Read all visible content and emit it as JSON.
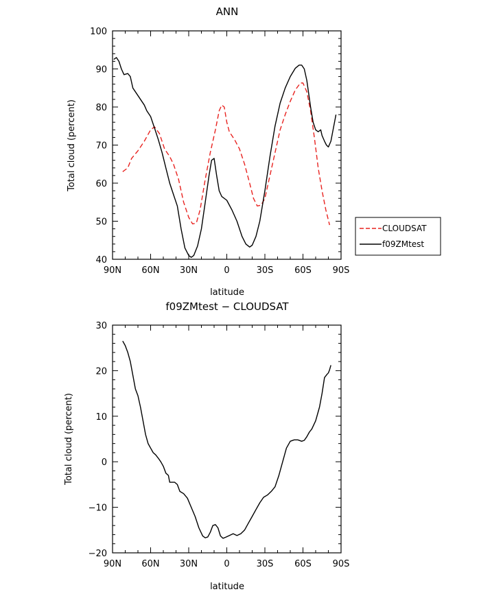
{
  "chart_data": [
    {
      "type": "line",
      "title": "ANN",
      "xlabel": "latitude",
      "ylabel": "Total cloud (percent)",
      "xlim": [
        90,
        -90
      ],
      "ylim": [
        40,
        100
      ],
      "xticks": [
        90,
        60,
        30,
        0,
        -30,
        -60,
        -90
      ],
      "xtick_labels": [
        "90N",
        "60N",
        "30N",
        "0",
        "30S",
        "60S",
        "90S"
      ],
      "yticks": [
        40,
        50,
        60,
        70,
        80,
        90,
        100
      ],
      "ytick_labels": [
        "40",
        "50",
        "60",
        "70",
        "80",
        "90",
        "100"
      ],
      "legend_position": "right",
      "series": [
        {
          "name": "CLOUDSAT",
          "color": "#e8221f",
          "dash": "dashed",
          "points": [
            [
              82,
              63
            ],
            [
              78,
              64
            ],
            [
              75,
              66.5
            ],
            [
              70,
              68.5
            ],
            [
              65,
              71
            ],
            [
              60,
              74
            ],
            [
              57,
              74.8
            ],
            [
              53,
              73
            ],
            [
              49,
              69
            ],
            [
              45,
              67
            ],
            [
              42,
              65
            ],
            [
              38,
              61
            ],
            [
              34,
              55
            ],
            [
              30,
              51
            ],
            [
              27,
              49.3
            ],
            [
              24,
              49.5
            ],
            [
              21,
              53
            ],
            [
              17,
              61
            ],
            [
              13,
              68
            ],
            [
              9,
              74
            ],
            [
              6,
              79
            ],
            [
              4,
              80.5
            ],
            [
              2,
              80
            ],
            [
              0,
              76
            ],
            [
              -2,
              73.5
            ],
            [
              -6,
              71.5
            ],
            [
              -10,
              69
            ],
            [
              -14,
              65
            ],
            [
              -18,
              60
            ],
            [
              -21,
              56
            ],
            [
              -24,
              54
            ],
            [
              -27,
              54.2
            ],
            [
              -30,
              56
            ],
            [
              -34,
              62
            ],
            [
              -38,
              68
            ],
            [
              -42,
              74
            ],
            [
              -46,
              78
            ],
            [
              -50,
              81.5
            ],
            [
              -54,
              84.5
            ],
            [
              -58,
              86.3
            ],
            [
              -60,
              86.3
            ],
            [
              -63,
              84
            ],
            [
              -66,
              79
            ],
            [
              -69,
              72
            ],
            [
              -72,
              64
            ],
            [
              -75,
              58
            ],
            [
              -78,
              53
            ],
            [
              -81,
              49
            ]
          ]
        },
        {
          "name": "f09ZMtest",
          "color": "#000000",
          "dash": "solid",
          "points": [
            [
              89,
              92.5
            ],
            [
              87,
              93
            ],
            [
              85,
              92
            ],
            [
              83,
              90
            ],
            [
              81,
              88.5
            ],
            [
              78,
              88.8
            ],
            [
              76,
              88
            ],
            [
              74,
              85
            ],
            [
              72,
              84
            ],
            [
              70,
              83
            ],
            [
              67,
              81.5
            ],
            [
              65,
              80.5
            ],
            [
              63,
              79
            ],
            [
              60,
              77.5
            ],
            [
              57,
              74.5
            ],
            [
              54,
              71.5
            ],
            [
              51,
              68
            ],
            [
              48,
              64
            ],
            [
              45,
              60
            ],
            [
              42,
              57
            ],
            [
              39,
              54
            ],
            [
              36,
              48
            ],
            [
              33,
              43
            ],
            [
              30,
              41
            ],
            [
              28,
              40.5
            ],
            [
              26,
              41
            ],
            [
              23,
              43.5
            ],
            [
              20,
              48
            ],
            [
              17,
              55
            ],
            [
              14,
              62
            ],
            [
              12,
              66
            ],
            [
              10,
              66.5
            ],
            [
              8,
              62
            ],
            [
              6,
              58
            ],
            [
              4,
              56.5
            ],
            [
              0,
              55.5
            ],
            [
              -4,
              53
            ],
            [
              -8,
              50
            ],
            [
              -12,
              46
            ],
            [
              -15,
              44
            ],
            [
              -18,
              43.2
            ],
            [
              -20,
              43.7
            ],
            [
              -23,
              46
            ],
            [
              -26,
              50
            ],
            [
              -30,
              58
            ],
            [
              -34,
              67
            ],
            [
              -38,
              75
            ],
            [
              -42,
              81
            ],
            [
              -46,
              85
            ],
            [
              -50,
              88
            ],
            [
              -54,
              90.2
            ],
            [
              -57,
              91
            ],
            [
              -59,
              91
            ],
            [
              -61,
              90
            ],
            [
              -63,
              87
            ],
            [
              -66,
              80
            ],
            [
              -68,
              76
            ],
            [
              -70,
              74
            ],
            [
              -72,
              73.5
            ],
            [
              -74,
              74
            ],
            [
              -75,
              72.5
            ],
            [
              -77,
              71
            ],
            [
              -78.5,
              70
            ],
            [
              -80,
              69.5
            ],
            [
              -82,
              71
            ],
            [
              -84,
              74.5
            ],
            [
              -86,
              78
            ]
          ]
        }
      ]
    },
    {
      "type": "line",
      "title": "f09ZMtest − CLOUDSAT",
      "xlabel": "latitude",
      "ylabel": "Total cloud (percent)",
      "xlim": [
        90,
        -90
      ],
      "ylim": [
        -20,
        30
      ],
      "xticks": [
        90,
        60,
        30,
        0,
        -30,
        -60,
        -90
      ],
      "xtick_labels": [
        "90N",
        "60N",
        "30N",
        "0",
        "30S",
        "60S",
        "90S"
      ],
      "yticks": [
        -20,
        -10,
        0,
        10,
        20,
        30
      ],
      "ytick_labels": [
        "−20",
        "−10",
        "0",
        "10",
        "20",
        "30"
      ],
      "series": [
        {
          "color": "#000000",
          "dash": "solid",
          "points": [
            [
              82,
              26.5
            ],
            [
              80,
              25.5
            ],
            [
              78,
              24
            ],
            [
              76,
              22
            ],
            [
              74,
              19
            ],
            [
              72,
              16
            ],
            [
              70,
              14.5
            ],
            [
              68,
              12
            ],
            [
              66,
              9
            ],
            [
              64,
              6
            ],
            [
              62,
              4
            ],
            [
              60,
              3
            ],
            [
              58,
              2
            ],
            [
              56,
              1.5
            ],
            [
              54,
              0.8
            ],
            [
              52,
              0
            ],
            [
              50,
              -1
            ],
            [
              48,
              -2.5
            ],
            [
              46,
              -3
            ],
            [
              45,
              -4.5
            ],
            [
              41,
              -4.5
            ],
            [
              39,
              -5
            ],
            [
              37,
              -6.5
            ],
            [
              34,
              -7
            ],
            [
              31,
              -8
            ],
            [
              28,
              -10
            ],
            [
              25,
              -12
            ],
            [
              22,
              -14.5
            ],
            [
              19,
              -16.3
            ],
            [
              17,
              -16.7
            ],
            [
              15,
              -16.5
            ],
            [
              13,
              -15.5
            ],
            [
              11,
              -14
            ],
            [
              9,
              -13.8
            ],
            [
              7,
              -14.5
            ],
            [
              5,
              -16.3
            ],
            [
              3,
              -16.8
            ],
            [
              1,
              -16.6
            ],
            [
              -2,
              -16.2
            ],
            [
              -5,
              -15.8
            ],
            [
              -8,
              -16.2
            ],
            [
              -11,
              -15.8
            ],
            [
              -14,
              -15
            ],
            [
              -17,
              -13.5
            ],
            [
              -20,
              -12
            ],
            [
              -23,
              -10.5
            ],
            [
              -26,
              -9
            ],
            [
              -29,
              -7.8
            ],
            [
              -32,
              -7.3
            ],
            [
              -35,
              -6.5
            ],
            [
              -38,
              -5.5
            ],
            [
              -41,
              -3
            ],
            [
              -44,
              0
            ],
            [
              -47,
              3
            ],
            [
              -50,
              4.5
            ],
            [
              -53,
              4.8
            ],
            [
              -56,
              4.8
            ],
            [
              -59,
              4.5
            ],
            [
              -61,
              4.7
            ],
            [
              -63,
              5.5
            ],
            [
              -65,
              6.5
            ],
            [
              -67,
              7.2
            ],
            [
              -70,
              9
            ],
            [
              -73,
              12
            ],
            [
              -75,
              15
            ],
            [
              -77,
              18.5
            ],
            [
              -79,
              19.2
            ],
            [
              -80,
              19.5
            ],
            [
              -81,
              20.2
            ],
            [
              -82,
              21.2
            ]
          ]
        }
      ]
    }
  ]
}
